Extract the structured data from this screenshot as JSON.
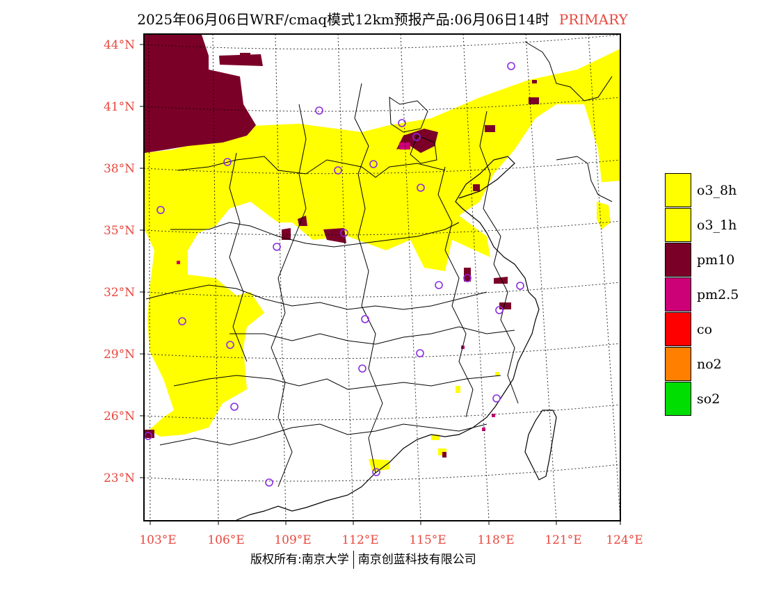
{
  "header": {
    "title": "2025年06月06日WRF/cmaq模式12km预报产品:06月06日14时",
    "tag": "PRIMARY"
  },
  "map": {
    "lat_labels": [
      "44°N",
      "41°N",
      "38°N",
      "35°N",
      "32°N",
      "29°N",
      "26°N",
      "23°N"
    ],
    "lon_labels": [
      "103°E",
      "106°E",
      "109°E",
      "112°E",
      "115°E",
      "118°E",
      "121°E",
      "124°E"
    ],
    "colors": {
      "o3": "#ffff00",
      "pm10": "#7b0028",
      "pm25": "#cc0077",
      "station": "#8a2be2",
      "boundary": "#000000",
      "label": "#e8473d"
    }
  },
  "legend": {
    "items": [
      {
        "label": "o3_8h",
        "color": "#ffff00"
      },
      {
        "label": "o3_1h",
        "color": "#ffff00"
      },
      {
        "label": "pm10",
        "color": "#7b0028"
      },
      {
        "label": "pm2.5",
        "color": "#cc0077"
      },
      {
        "label": "co",
        "color": "#ff0000"
      },
      {
        "label": "no2",
        "color": "#ff7f00"
      },
      {
        "label": "so2",
        "color": "#00dd00"
      }
    ]
  },
  "footer": {
    "left": "版权所有:南京大学",
    "right": "南京创蓝科技有限公司"
  }
}
